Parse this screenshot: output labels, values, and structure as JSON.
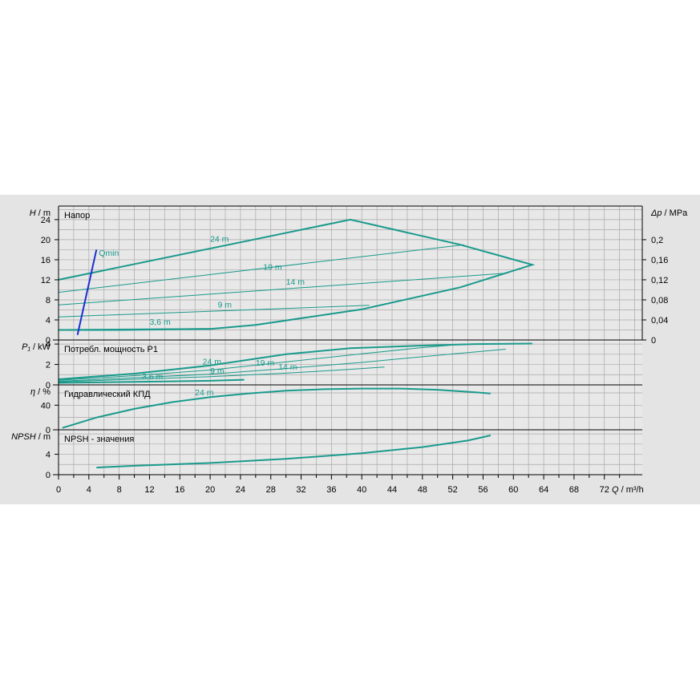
{
  "colors": {
    "curve": "#1a9a8c",
    "qmin": "#1a2fd0",
    "grid": "#a8a8a8",
    "panel": "#e4e4e4",
    "plot": "#e8e8e8"
  },
  "chart_data": [
    {
      "type": "line",
      "panel": "head",
      "ylabel_left": {
        "symbol": "H",
        "unit": "m"
      },
      "ylabel_right": {
        "symbol": "Δp",
        "unit": "MPa"
      },
      "title": "Напор",
      "ylim": [
        0,
        26.7
      ],
      "yticks": [
        0,
        4,
        8,
        12,
        16,
        20,
        24
      ],
      "yticks_right": {
        "values": [
          0,
          0.04,
          0.08,
          0.12,
          0.16,
          0.2
        ],
        "labels": [
          "0",
          "0,04",
          "0,08",
          "0,12",
          "0,16",
          "0,2"
        ]
      },
      "series": [
        {
          "name": "24 m",
          "label_at": [
            20,
            19.6
          ],
          "x": [
            0,
            38.5,
            53,
            62.5,
            53,
            40,
            26,
            20,
            8,
            0
          ],
          "y": [
            12,
            24,
            19,
            15,
            10.5,
            6.1,
            3,
            2.2,
            2,
            2
          ],
          "close_with": "3,6 m"
        },
        {
          "name": "19 m",
          "label_at": [
            27,
            14
          ],
          "x": [
            0,
            53.5
          ],
          "y": [
            9.5,
            19
          ]
        },
        {
          "name": "14 m",
          "label_at": [
            30,
            11
          ],
          "x": [
            0,
            59
          ],
          "y": [
            7,
            13.3
          ]
        },
        {
          "name": "9 m",
          "label_at": [
            21,
            6.5
          ],
          "x": [
            0,
            41
          ],
          "y": [
            4.6,
            6.9
          ]
        },
        {
          "name": "3,6 m",
          "label_at": [
            12,
            3
          ],
          "x": [
            0,
            20
          ],
          "y": [
            2,
            2.2
          ]
        }
      ],
      "qmin": {
        "label": "Qmin",
        "x": [
          2.5,
          5
        ],
        "y": [
          1,
          18
        ]
      }
    },
    {
      "type": "line",
      "panel": "power",
      "ylabel_left": {
        "symbol": "P₁",
        "unit": "kW"
      },
      "title": "Потребл. мощность P1",
      "ylim": [
        0,
        4.4
      ],
      "yticks": [
        0,
        2,
        4
      ],
      "series": [
        {
          "name": "24 m",
          "label_at": [
            19,
            2
          ],
          "x": [
            0,
            10,
            20,
            30,
            38.5,
            48,
            55,
            62.5
          ],
          "y": [
            0.55,
            1.1,
            1.9,
            3.0,
            3.6,
            3.85,
            4.0,
            4.05
          ]
        },
        {
          "name": "19 m",
          "label_at": [
            26,
            1.9
          ],
          "x": [
            0,
            10,
            20,
            30,
            40,
            48,
            53.5
          ],
          "y": [
            0.45,
            0.9,
            1.45,
            2.25,
            3.05,
            3.65,
            4.0
          ]
        },
        {
          "name": "14 m",
          "label_at": [
            29,
            1.5
          ],
          "x": [
            0,
            10,
            20,
            30,
            40,
            50,
            59
          ],
          "y": [
            0.35,
            0.7,
            1.05,
            1.6,
            2.2,
            2.9,
            3.5
          ]
        },
        {
          "name": "9 m",
          "label_at": [
            20,
            1.1
          ],
          "x": [
            0,
            10,
            20,
            30,
            38,
            43
          ],
          "y": [
            0.3,
            0.55,
            0.8,
            1.15,
            1.5,
            1.75
          ]
        },
        {
          "name": "3,6 m",
          "label_at": [
            11,
            0.55
          ],
          "x": [
            0,
            10,
            20,
            24.5
          ],
          "y": [
            0.2,
            0.3,
            0.4,
            0.5
          ]
        }
      ]
    },
    {
      "type": "line",
      "panel": "efficiency",
      "ylabel_left": {
        "symbol": "η",
        "unit": "%"
      },
      "title": "Гидравлический КПД",
      "ylim": [
        0,
        73
      ],
      "yticks": [
        0,
        40
      ],
      "series": [
        {
          "name": "24 m",
          "label_at": [
            18,
            56
          ],
          "x": [
            0.5,
            5,
            10,
            15,
            20,
            25,
            30,
            35,
            40,
            45,
            50,
            55,
            57
          ],
          "y": [
            3,
            20,
            34,
            45,
            53,
            59,
            63.5,
            66,
            67,
            67,
            65,
            61,
            59
          ]
        }
      ]
    },
    {
      "type": "line",
      "panel": "npsh",
      "ylabel_left": {
        "symbol": "NPSH",
        "unit": "m"
      },
      "title": "NPSH - значения",
      "ylim": [
        0,
        8.8
      ],
      "yticks": [
        0,
        4
      ],
      "series": [
        {
          "name": "",
          "x": [
            5,
            10,
            20,
            30,
            40,
            48,
            54,
            57
          ],
          "y": [
            1.4,
            1.75,
            2.3,
            3.1,
            4.2,
            5.4,
            6.7,
            7.7
          ]
        }
      ]
    }
  ],
  "x_axis": {
    "xlim": [
      0,
      77
    ],
    "ticks": [
      0,
      4,
      8,
      12,
      16,
      20,
      24,
      28,
      32,
      36,
      40,
      44,
      48,
      52,
      56,
      60,
      64,
      68,
      72
    ],
    "label": {
      "symbol": "Q",
      "unit": "m³/h"
    }
  }
}
